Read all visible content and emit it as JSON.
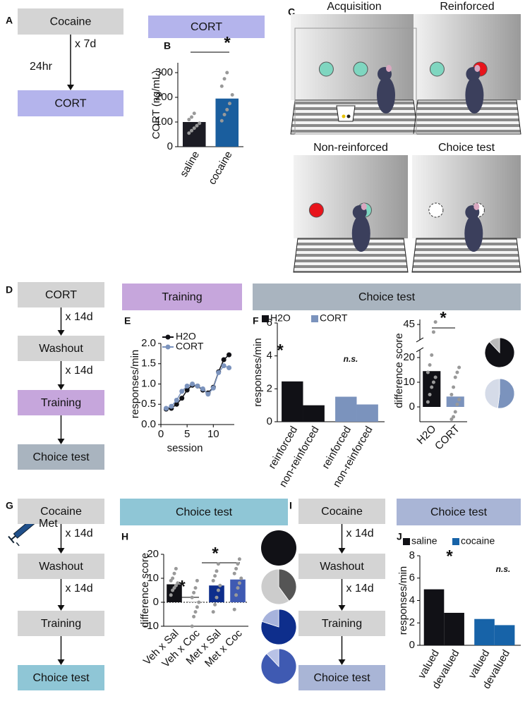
{
  "panels": [
    "A",
    "B",
    "C",
    "D",
    "E",
    "F",
    "G",
    "H",
    "I",
    "J"
  ],
  "headers": [
    {
      "text": "CORT",
      "color": "#b4b4ec"
    },
    {
      "text": "Training",
      "color": "#c6a6dc"
    },
    {
      "text": "Choice test",
      "color": "#a9b4bf"
    },
    {
      "text": "Choice test",
      "color": "#8fc6d6"
    },
    {
      "text": "Choice test",
      "color": "#a9b5d6"
    }
  ],
  "flows": [
    {
      "steps": [
        "Cocaine",
        "CORT"
      ],
      "colors": [
        "#d4d4d4",
        "#b4b4ec"
      ],
      "intervals": [
        "x 7d"
      ],
      "note": "24hr"
    },
    {
      "steps": [
        "CORT",
        "Washout",
        "Training",
        "Choice test"
      ],
      "colors": [
        "#d4d4d4",
        "#d4d4d4",
        "#c6a6dc",
        "#a9b4bf"
      ],
      "intervals": [
        "x 14d",
        "x 14d"
      ]
    },
    {
      "steps": [
        "Cocaine",
        "Washout",
        "Training",
        "Choice test"
      ],
      "colors": [
        "#d4d4d4",
        "#d4d4d4",
        "#d4d4d4",
        "#8fc6d6"
      ],
      "intervals": [
        "x 14d",
        "x 14d"
      ],
      "note": "Met"
    },
    {
      "steps": [
        "Cocaine",
        "Washout",
        "Training",
        "Choice test"
      ],
      "colors": [
        "#d4d4d4",
        "#d4d4d4",
        "#d4d4d4",
        "#a9b5d6"
      ],
      "intervals": [
        "x 14d",
        "x 14d"
      ]
    }
  ],
  "scenes": [
    "Acquisition",
    "Reinforced",
    "Non-reinforced",
    "Choice test"
  ],
  "chart_data": [
    {
      "type": "bar",
      "categories": [
        "saline",
        "cocaine"
      ],
      "values": [
        100,
        195
      ],
      "colors": [
        "#1c1c24",
        "#1a5e9e"
      ],
      "points": [
        [
          55,
          65,
          75,
          85,
          95,
          110,
          120,
          135
        ],
        [
          105,
          130,
          150,
          175,
          210,
          245,
          275,
          300
        ]
      ],
      "ylim": [
        0,
        340
      ],
      "yticks": [
        0,
        100,
        200,
        300
      ],
      "ylabel": "CORT (ng/mL)",
      "annotations": [
        "*"
      ]
    },
    {
      "type": "line",
      "x": [
        1,
        2,
        3,
        4,
        5,
        6,
        7,
        8,
        9,
        10,
        11,
        12,
        13
      ],
      "series": [
        {
          "name": "H2O",
          "color": "#111116",
          "values": [
            0.38,
            0.4,
            0.5,
            0.65,
            0.85,
            0.97,
            0.95,
            0.85,
            0.78,
            0.92,
            1.3,
            1.6,
            1.72
          ]
        },
        {
          "name": "CORT",
          "color": "#7b93bd",
          "values": [
            0.4,
            0.45,
            0.6,
            0.82,
            0.95,
            1.0,
            0.95,
            0.88,
            0.75,
            0.9,
            1.28,
            1.45,
            1.4
          ]
        }
      ],
      "xlim": [
        0,
        14
      ],
      "xticks": [
        0,
        5,
        10
      ],
      "ylim": [
        0,
        2
      ],
      "yticks": [
        {
          "value": 0,
          "label": "0.0"
        },
        0.5,
        {
          "value": 1,
          "label": "1.0"
        },
        1.5,
        {
          "value": 2,
          "label": "2.0"
        }
      ],
      "xlabel": "session",
      "ylabel": "responses/min"
    },
    {
      "type": "grouped-bar",
      "categories": [
        "reinforced",
        "non-reinforced"
      ],
      "series": [
        {
          "name": "H2O",
          "color": "#111116",
          "values": [
            2.45,
            1.0
          ]
        },
        {
          "name": "CORT",
          "color": "#7b93bd",
          "values": [
            1.52,
            1.05
          ]
        }
      ],
      "ylim": [
        0,
        6
      ],
      "yticks": [
        0,
        2,
        4,
        6
      ],
      "ylabel": "responses/min",
      "annotations": [
        "*",
        "n.s."
      ]
    },
    {
      "type": "bar",
      "categories": [
        "H2O",
        "CORT"
      ],
      "values": [
        14.5,
        4.2
      ],
      "colors": [
        "#111116",
        "#7b93bd"
      ],
      "points": [
        [
          2,
          5,
          8,
          10,
          12,
          14,
          17,
          21,
          42,
          46
        ],
        [
          -5,
          -4,
          -2,
          1,
          3,
          5,
          8,
          12,
          14,
          16
        ]
      ],
      "ylim": [
        -6,
        47
      ],
      "ybreak": [
        22,
        40
      ],
      "yticks": [
        0,
        10,
        20,
        45
      ],
      "ylabel": "difference score",
      "annotations": [
        "*"
      ]
    },
    {
      "type": "pie",
      "values": [
        88,
        12
      ],
      "colors": [
        "#111116",
        "#bbbbbb"
      ]
    },
    {
      "type": "pie",
      "values": [
        52,
        48
      ],
      "colors": [
        "#7b93bd",
        "#d5dbe8"
      ]
    },
    {
      "type": "bar",
      "categories": [
        "Veh x Sal",
        "Veh x Coc",
        "Met x Sal",
        "Met x Coc"
      ],
      "values": [
        7.5,
        0.2,
        7,
        9.5
      ],
      "colors": [
        "#111116",
        "#9a9a9a",
        "#0e2e8c",
        "#3f5ab2"
      ],
      "points": [
        [
          3,
          5,
          6,
          7,
          8,
          9,
          10,
          12,
          14
        ],
        [
          -10,
          -6,
          -4,
          -2,
          0,
          2,
          4,
          6,
          9
        ],
        [
          -4,
          -1,
          2,
          5,
          7,
          9,
          11,
          13,
          16
        ],
        [
          -3,
          3,
          6,
          8,
          10,
          12,
          14,
          16,
          18
        ]
      ],
      "ylim": [
        -10,
        20
      ],
      "yticks": [
        -10,
        0,
        10,
        20
      ],
      "zeroline": true,
      "ylabel": "difference score",
      "annotations": [
        "*",
        "*"
      ]
    },
    {
      "type": "pie",
      "values": [
        100
      ],
      "colors": [
        "#111116"
      ]
    },
    {
      "type": "pie",
      "values": [
        40,
        60
      ],
      "colors": [
        "#555555",
        "#cccccc"
      ]
    },
    {
      "type": "pie",
      "values": [
        80,
        20
      ],
      "colors": [
        "#0e2e8c",
        "#a7b3dc"
      ]
    },
    {
      "type": "pie",
      "values": [
        88,
        12
      ],
      "colors": [
        "#3f5ab2",
        "#b8c2e6"
      ]
    },
    {
      "type": "grouped-bar",
      "categories": [
        "valued",
        "devalued"
      ],
      "series": [
        {
          "name": "saline",
          "color": "#111116",
          "values": [
            5.0,
            2.9
          ]
        },
        {
          "name": "cocaine",
          "color": "#1763a8",
          "values": [
            2.35,
            1.8
          ]
        }
      ],
      "ylim": [
        0,
        8
      ],
      "yticks": [
        0,
        2,
        4,
        6,
        8
      ],
      "ylabel": "responses/min",
      "annotations": [
        "*",
        "n.s."
      ]
    }
  ]
}
